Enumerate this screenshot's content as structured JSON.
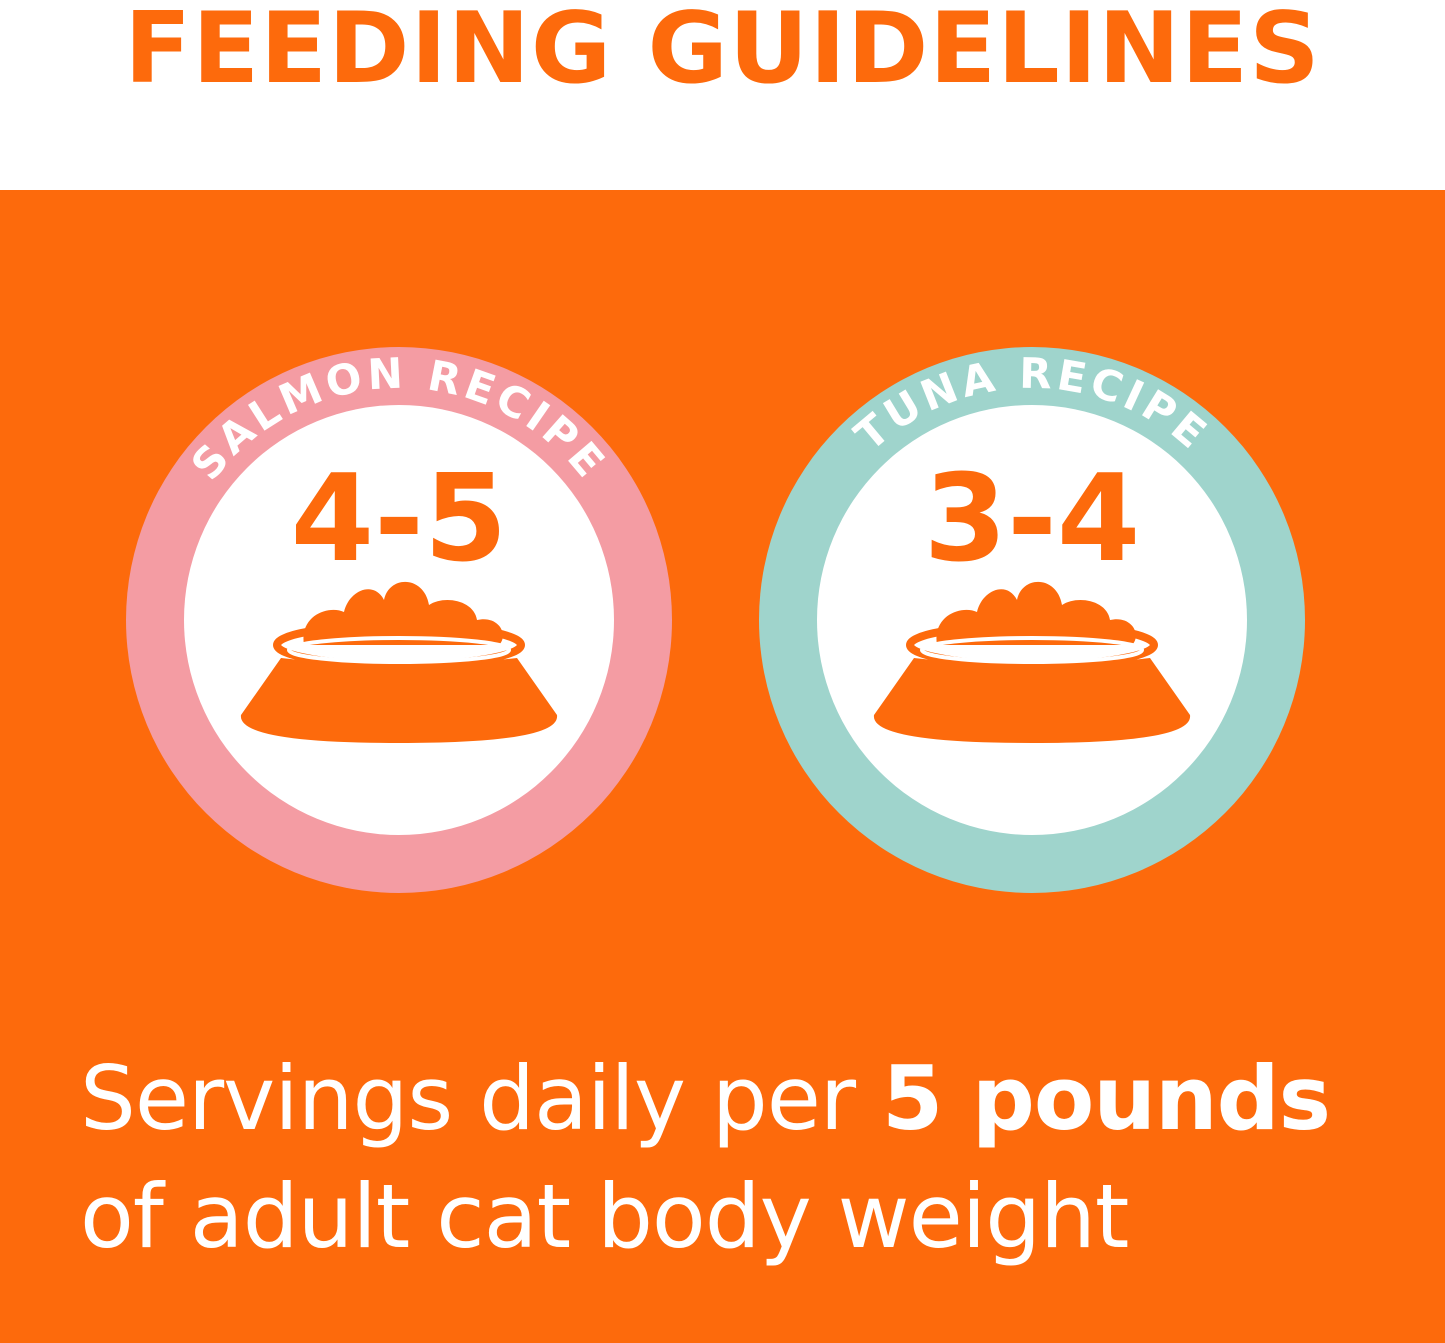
{
  "header": {
    "title": "FEEDING GUIDELINES"
  },
  "colors": {
    "orange": "#fd6a0c",
    "salmon": "#f49ca3",
    "tuna": "#9fd4cc",
    "white": "#ffffff"
  },
  "recipes": [
    {
      "name": "SALMON RECIPE",
      "servings": "4-5",
      "ring_color": "#f49ca3",
      "icon": "food-bowl-icon"
    },
    {
      "name": "TUNA RECIPE",
      "servings": "3-4",
      "ring_color": "#9fd4cc",
      "icon": "food-bowl-icon"
    }
  ],
  "caption": {
    "line1_regular": "Servings daily per ",
    "line1_bold": "5 pounds",
    "line2": "of adult cat body weight"
  }
}
